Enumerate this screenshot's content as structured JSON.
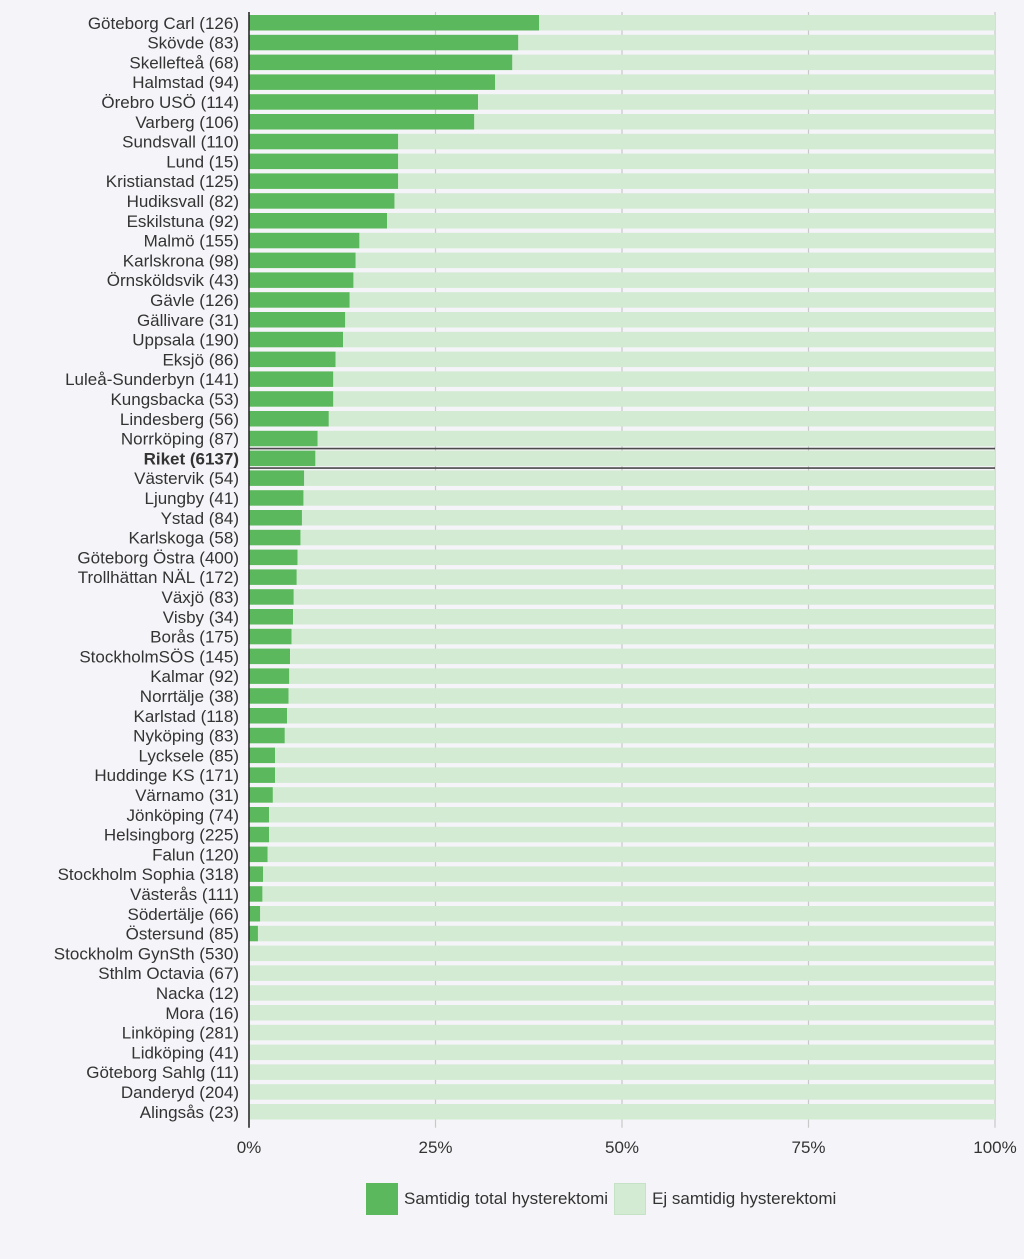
{
  "chart_data": {
    "type": "bar",
    "orientation": "horizontal",
    "stacked": true,
    "categories": [
      "Göteborg Carl (126)",
      "Skövde (83)",
      "Skellefteå (68)",
      "Halmstad (94)",
      "Örebro USÖ (114)",
      "Varberg (106)",
      "Sundsvall (110)",
      "Lund (15)",
      "Kristianstad (125)",
      "Hudiksvall (82)",
      "Eskilstuna (92)",
      "Malmö (155)",
      "Karlskrona (98)",
      "Örnsköldsvik (43)",
      "Gävle (126)",
      "Gällivare (31)",
      "Uppsala (190)",
      "Eksjö (86)",
      "Luleå-Sunderbyn (141)",
      "Kungsbacka (53)",
      "Lindesberg (56)",
      "Norrköping (87)",
      "Riket (6137)",
      "Västervik (54)",
      "Ljungby (41)",
      "Ystad (84)",
      "Karlskoga (58)",
      "Göteborg Östra (400)",
      "Trollhättan NÄL (172)",
      "Växjö (83)",
      "Visby (34)",
      "Borås (175)",
      "StockholmSÖS (145)",
      "Kalmar (92)",
      "Norrtälje (38)",
      "Karlstad (118)",
      "Nyköping (83)",
      "Lycksele (85)",
      "Huddinge KS (171)",
      "Värnamo (31)",
      "Jönköping (74)",
      "Helsingborg (225)",
      "Falun (120)",
      "Stockholm Sophia (318)",
      "Västerås (111)",
      "Södertälje (66)",
      "Östersund (85)",
      "Stockholm GynSth (530)",
      "Sthlm Octavia (67)",
      "Nacka (12)",
      "Mora (16)",
      "Linköping (281)",
      "Lidköping (41)",
      "Göteborg Sahlg (11)",
      "Danderyd (204)",
      "Alingsås (23)"
    ],
    "highlight_category": "Riket (6137)",
    "series": [
      {
        "name": "Samtidig total hysterektomi",
        "color": "#5cb85c",
        "values": [
          38.9,
          36.1,
          35.3,
          33.0,
          30.7,
          30.2,
          20.0,
          20.0,
          20.0,
          19.5,
          18.5,
          14.8,
          14.3,
          14.0,
          13.5,
          12.9,
          12.6,
          11.6,
          11.3,
          11.3,
          10.7,
          9.2,
          8.9,
          7.4,
          7.3,
          7.1,
          6.9,
          6.5,
          6.4,
          6.0,
          5.9,
          5.7,
          5.5,
          5.4,
          5.3,
          5.1,
          4.8,
          3.5,
          3.5,
          3.2,
          2.7,
          2.7,
          2.5,
          1.9,
          1.8,
          1.5,
          1.2,
          0,
          0,
          0,
          0,
          0,
          0,
          0,
          0,
          0
        ]
      },
      {
        "name": "Ej samtidig hysterektomi",
        "color": "#d3ebd3",
        "values": [
          61.1,
          63.9,
          64.7,
          67.0,
          69.3,
          69.8,
          80.0,
          80.0,
          80.0,
          80.5,
          81.5,
          85.2,
          85.7,
          86.0,
          86.5,
          87.1,
          87.4,
          88.4,
          88.7,
          88.7,
          89.3,
          90.8,
          91.1,
          92.6,
          92.7,
          92.9,
          93.1,
          93.5,
          93.6,
          94.0,
          94.1,
          94.3,
          94.5,
          94.6,
          94.7,
          94.9,
          95.2,
          96.5,
          96.5,
          96.8,
          97.3,
          97.3,
          97.5,
          98.1,
          98.2,
          98.5,
          98.8,
          100,
          100,
          100,
          100,
          100,
          100,
          100,
          100,
          100
        ]
      }
    ],
    "x_ticks": [
      "0%",
      "25%",
      "50%",
      "75%",
      "100%"
    ],
    "xlim": [
      0,
      100
    ],
    "grid": true,
    "legend_position": "bottom"
  },
  "legend": {
    "items": [
      {
        "label": "Samtidig total hysterektomi",
        "color": "#5cb85c"
      },
      {
        "label": "Ej samtidig hysterektomi",
        "color": "#d3ebd3"
      }
    ]
  }
}
